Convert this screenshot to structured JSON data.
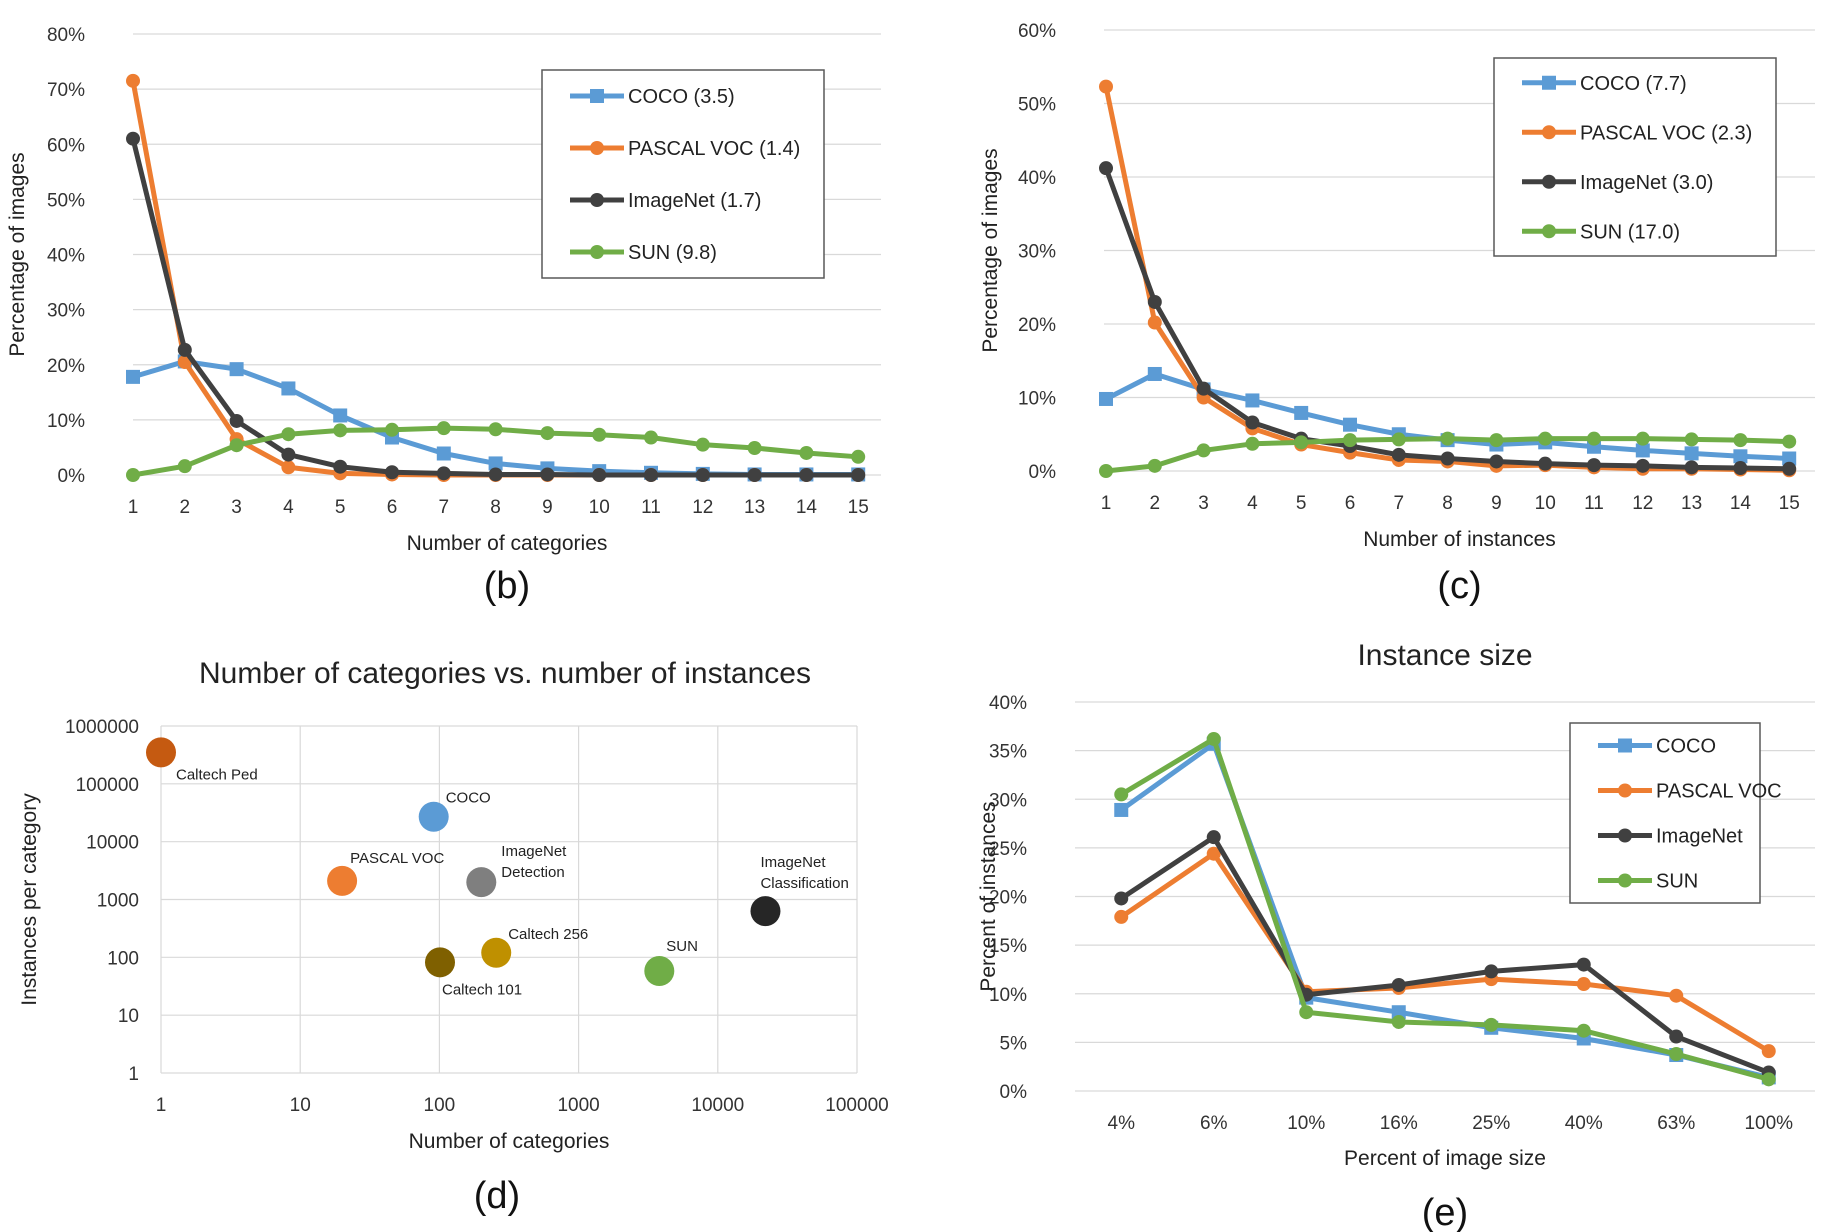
{
  "colors": {
    "coco": "#5b9bd5",
    "pascal": "#ed7d31",
    "imagenet": "#404040",
    "sun": "#70ad47",
    "grid": "#d9d9d9"
  },
  "chart_data": [
    {
      "id": "b",
      "type": "line",
      "panel_label": "(b)",
      "xlabel": "Number of categories",
      "ylabel": "Percentage of images",
      "x": [
        1,
        2,
        3,
        4,
        5,
        6,
        7,
        8,
        9,
        10,
        11,
        12,
        13,
        14,
        15
      ],
      "ylim": [
        0,
        80
      ],
      "yticks": [
        "0%",
        "10%",
        "20%",
        "30%",
        "40%",
        "50%",
        "60%",
        "70%",
        "80%"
      ],
      "legend_position": "top-right",
      "series": [
        {
          "name": "COCO (3.5)",
          "key": "coco",
          "marker": "square",
          "values": [
            17.8,
            20.6,
            19.2,
            15.7,
            10.8,
            6.8,
            3.9,
            2.1,
            1.2,
            0.7,
            0.4,
            0.2,
            0.1,
            0.1,
            0.1
          ]
        },
        {
          "name": "PASCAL VOC (1.4)",
          "key": "pascal",
          "marker": "circle",
          "values": [
            71.5,
            20.5,
            6.5,
            1.4,
            0.3,
            0.1,
            0.0,
            0.0,
            0.0,
            0.0,
            0.0,
            0.0,
            0.0,
            0.0,
            0.0
          ]
        },
        {
          "name": "ImageNet (1.7)",
          "key": "imagenet",
          "marker": "circle",
          "values": [
            61.0,
            22.7,
            9.8,
            3.7,
            1.5,
            0.5,
            0.3,
            0.1,
            0.1,
            0.0,
            0.0,
            0.0,
            0.0,
            0.0,
            0.0
          ]
        },
        {
          "name": "SUN (9.8)",
          "key": "sun",
          "marker": "circle",
          "values": [
            0.0,
            1.6,
            5.4,
            7.4,
            8.1,
            8.2,
            8.5,
            8.3,
            7.6,
            7.3,
            6.8,
            5.5,
            4.9,
            4.0,
            3.3
          ]
        }
      ]
    },
    {
      "id": "c",
      "type": "line",
      "panel_label": "(c)",
      "xlabel": "Number of instances",
      "ylabel": "Percentage of images",
      "x": [
        1,
        2,
        3,
        4,
        5,
        6,
        7,
        8,
        9,
        10,
        11,
        12,
        13,
        14,
        15
      ],
      "ylim": [
        0,
        60
      ],
      "yticks": [
        "0%",
        "10%",
        "20%",
        "30%",
        "40%",
        "50%",
        "60%"
      ],
      "legend_position": "top-right",
      "series": [
        {
          "name": "COCO (7.7)",
          "key": "coco",
          "marker": "square",
          "values": [
            9.8,
            13.2,
            11.1,
            9.6,
            7.9,
            6.3,
            5.0,
            4.2,
            3.6,
            3.9,
            3.3,
            2.8,
            2.4,
            2.0,
            1.7
          ]
        },
        {
          "name": "PASCAL VOC (2.3)",
          "key": "pascal",
          "marker": "circle",
          "values": [
            52.3,
            20.2,
            10.0,
            5.8,
            3.6,
            2.5,
            1.5,
            1.3,
            0.7,
            0.8,
            0.5,
            0.3,
            0.3,
            0.2,
            0.1
          ]
        },
        {
          "name": "ImageNet (3.0)",
          "key": "imagenet",
          "marker": "circle",
          "values": [
            41.2,
            23.0,
            11.2,
            6.6,
            4.4,
            3.4,
            2.2,
            1.7,
            1.3,
            1.0,
            0.8,
            0.7,
            0.5,
            0.4,
            0.3
          ]
        },
        {
          "name": "SUN (17.0)",
          "key": "sun",
          "marker": "circle",
          "values": [
            0.0,
            0.7,
            2.8,
            3.7,
            3.9,
            4.2,
            4.3,
            4.4,
            4.2,
            4.4,
            4.4,
            4.4,
            4.3,
            4.2,
            4.0
          ]
        }
      ]
    },
    {
      "id": "d",
      "type": "scatter",
      "panel_label": "(d)",
      "title": "Number of categories vs. number of instances",
      "xlabel": "Number of categories",
      "ylabel": "Instances per category",
      "xscale": "log",
      "yscale": "log",
      "xlim": [
        1,
        100000
      ],
      "ylim": [
        1,
        1000000
      ],
      "xticks": [
        "1",
        "10",
        "100",
        "1000",
        "10000",
        "100000"
      ],
      "yticks": [
        "1",
        "10",
        "100",
        "1000",
        "10000",
        "100000",
        "1000000"
      ],
      "grid": true,
      "points": [
        {
          "label": "Caltech Ped",
          "x": 1,
          "y": 350000,
          "color": "#c55a11"
        },
        {
          "label": "COCO",
          "x": 91,
          "y": 27000,
          "color": "#5b9bd5"
        },
        {
          "label": "PASCAL VOC",
          "x": 20,
          "y": 2100,
          "color": "#ed7d31"
        },
        {
          "label": "ImageNet Detection",
          "x": 200,
          "y": 2000,
          "color": "#7f7f7f"
        },
        {
          "label": "ImageNet Classification",
          "x": 22000,
          "y": 630,
          "color": "#262626"
        },
        {
          "label": "Caltech 256",
          "x": 256,
          "y": 120,
          "color": "#bf9000"
        },
        {
          "label": "Caltech 101",
          "x": 101,
          "y": 82,
          "color": "#7f6000"
        },
        {
          "label": "SUN",
          "x": 3800,
          "y": 58,
          "color": "#70ad47"
        }
      ]
    },
    {
      "id": "e",
      "type": "line",
      "panel_label": "(e)",
      "title": "Instance size",
      "xlabel": "Percent of image size",
      "ylabel": "Percent of instances",
      "categories": [
        "4%",
        "6%",
        "10%",
        "16%",
        "25%",
        "40%",
        "63%",
        "100%"
      ],
      "ylim": [
        0,
        40
      ],
      "yticks": [
        "0%",
        "5%",
        "10%",
        "15%",
        "20%",
        "25%",
        "30%",
        "35%",
        "40%"
      ],
      "legend_position": "top-right",
      "series": [
        {
          "name": "COCO",
          "key": "coco",
          "marker": "square",
          "values": [
            28.9,
            35.7,
            9.6,
            8.1,
            6.5,
            5.4,
            3.7,
            1.4
          ]
        },
        {
          "name": "PASCAL VOC",
          "key": "pascal",
          "marker": "circle",
          "values": [
            17.9,
            24.4,
            10.2,
            10.6,
            11.5,
            11.0,
            9.8,
            4.1
          ]
        },
        {
          "name": "ImageNet",
          "key": "imagenet",
          "marker": "circle",
          "values": [
            19.8,
            26.1,
            9.9,
            10.9,
            12.3,
            13.0,
            5.6,
            1.9
          ]
        },
        {
          "name": "SUN",
          "key": "sun",
          "marker": "circle",
          "values": [
            30.5,
            36.2,
            8.1,
            7.1,
            6.8,
            6.2,
            3.8,
            1.2
          ]
        }
      ]
    }
  ]
}
